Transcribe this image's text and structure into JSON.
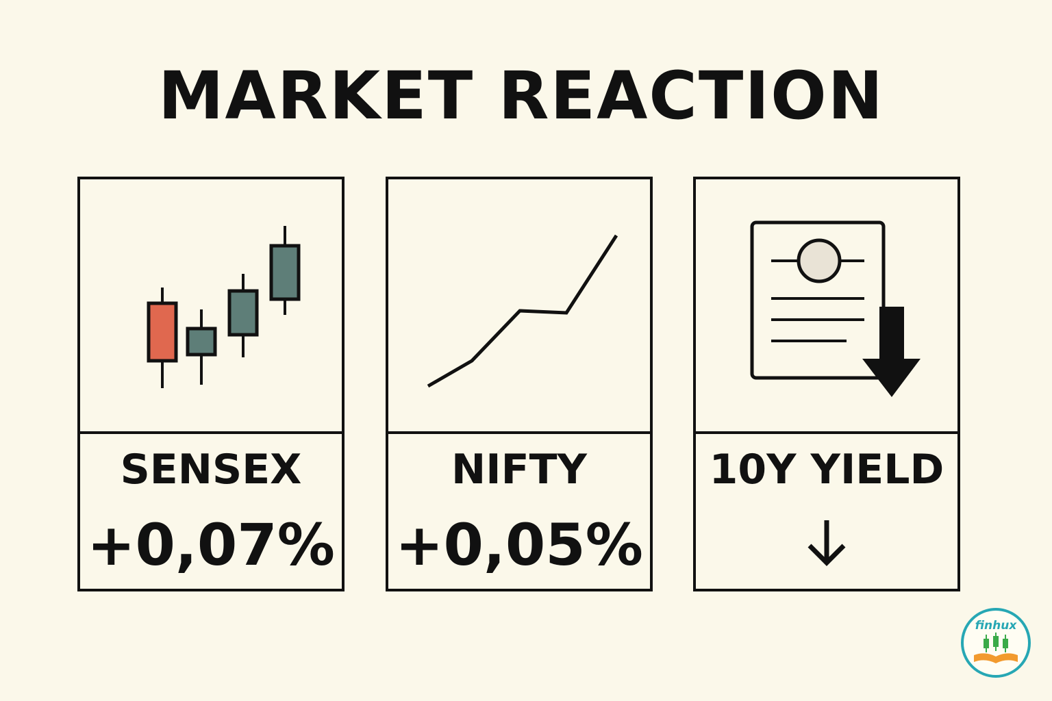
{
  "title": "MARKET REACTION",
  "cards": [
    {
      "label": "SENSEX",
      "value": "+0,07%",
      "icon": "candlestick-chart-icon"
    },
    {
      "label": "NIFTY",
      "value": "+0,05%",
      "icon": "line-chart-icon"
    },
    {
      "label": "10Y YIELD",
      "value": "↓",
      "icon": "document-down-arrow-icon"
    }
  ],
  "logo": {
    "text": "finhux"
  },
  "colors": {
    "background": "#fbf8ea",
    "ink": "#111111",
    "bear_candle": "#e0684f",
    "bull_candle": "#5e7e78",
    "logo_text": "#27a7b4",
    "logo_green": "#3aaa48",
    "logo_orange": "#f29a2e"
  }
}
